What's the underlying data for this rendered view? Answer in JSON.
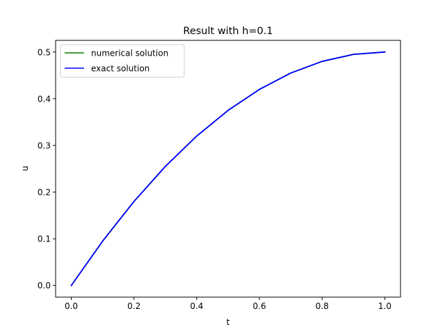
{
  "chart_data": {
    "type": "line",
    "title": "Result with h=0.1",
    "xlabel": "t",
    "ylabel": "u",
    "xlim": [
      -0.05,
      1.05
    ],
    "ylim": [
      -0.025,
      0.525
    ],
    "xticks": [
      0.0,
      0.2,
      0.4,
      0.6,
      0.8,
      1.0
    ],
    "xtick_labels": [
      "0.0",
      "0.2",
      "0.4",
      "0.6",
      "0.8",
      "1.0"
    ],
    "yticks": [
      0.0,
      0.1,
      0.2,
      0.3,
      0.4,
      0.5
    ],
    "ytick_labels": [
      "0.0",
      "0.1",
      "0.2",
      "0.3",
      "0.4",
      "0.5"
    ],
    "grid": false,
    "legend_position": "top-left",
    "x": [
      0.0,
      0.1,
      0.2,
      0.3,
      0.4,
      0.5,
      0.6,
      0.7,
      0.8,
      0.9,
      1.0
    ],
    "series": [
      {
        "name": "numerical solution",
        "color": "#008000",
        "values": [
          0.0,
          0.095,
          0.18,
          0.255,
          0.32,
          0.375,
          0.42,
          0.455,
          0.48,
          0.495,
          0.5
        ]
      },
      {
        "name": "exact solution",
        "color": "#0000ff",
        "values": [
          0.0,
          0.095,
          0.18,
          0.255,
          0.32,
          0.375,
          0.42,
          0.455,
          0.48,
          0.495,
          0.5
        ]
      }
    ]
  }
}
